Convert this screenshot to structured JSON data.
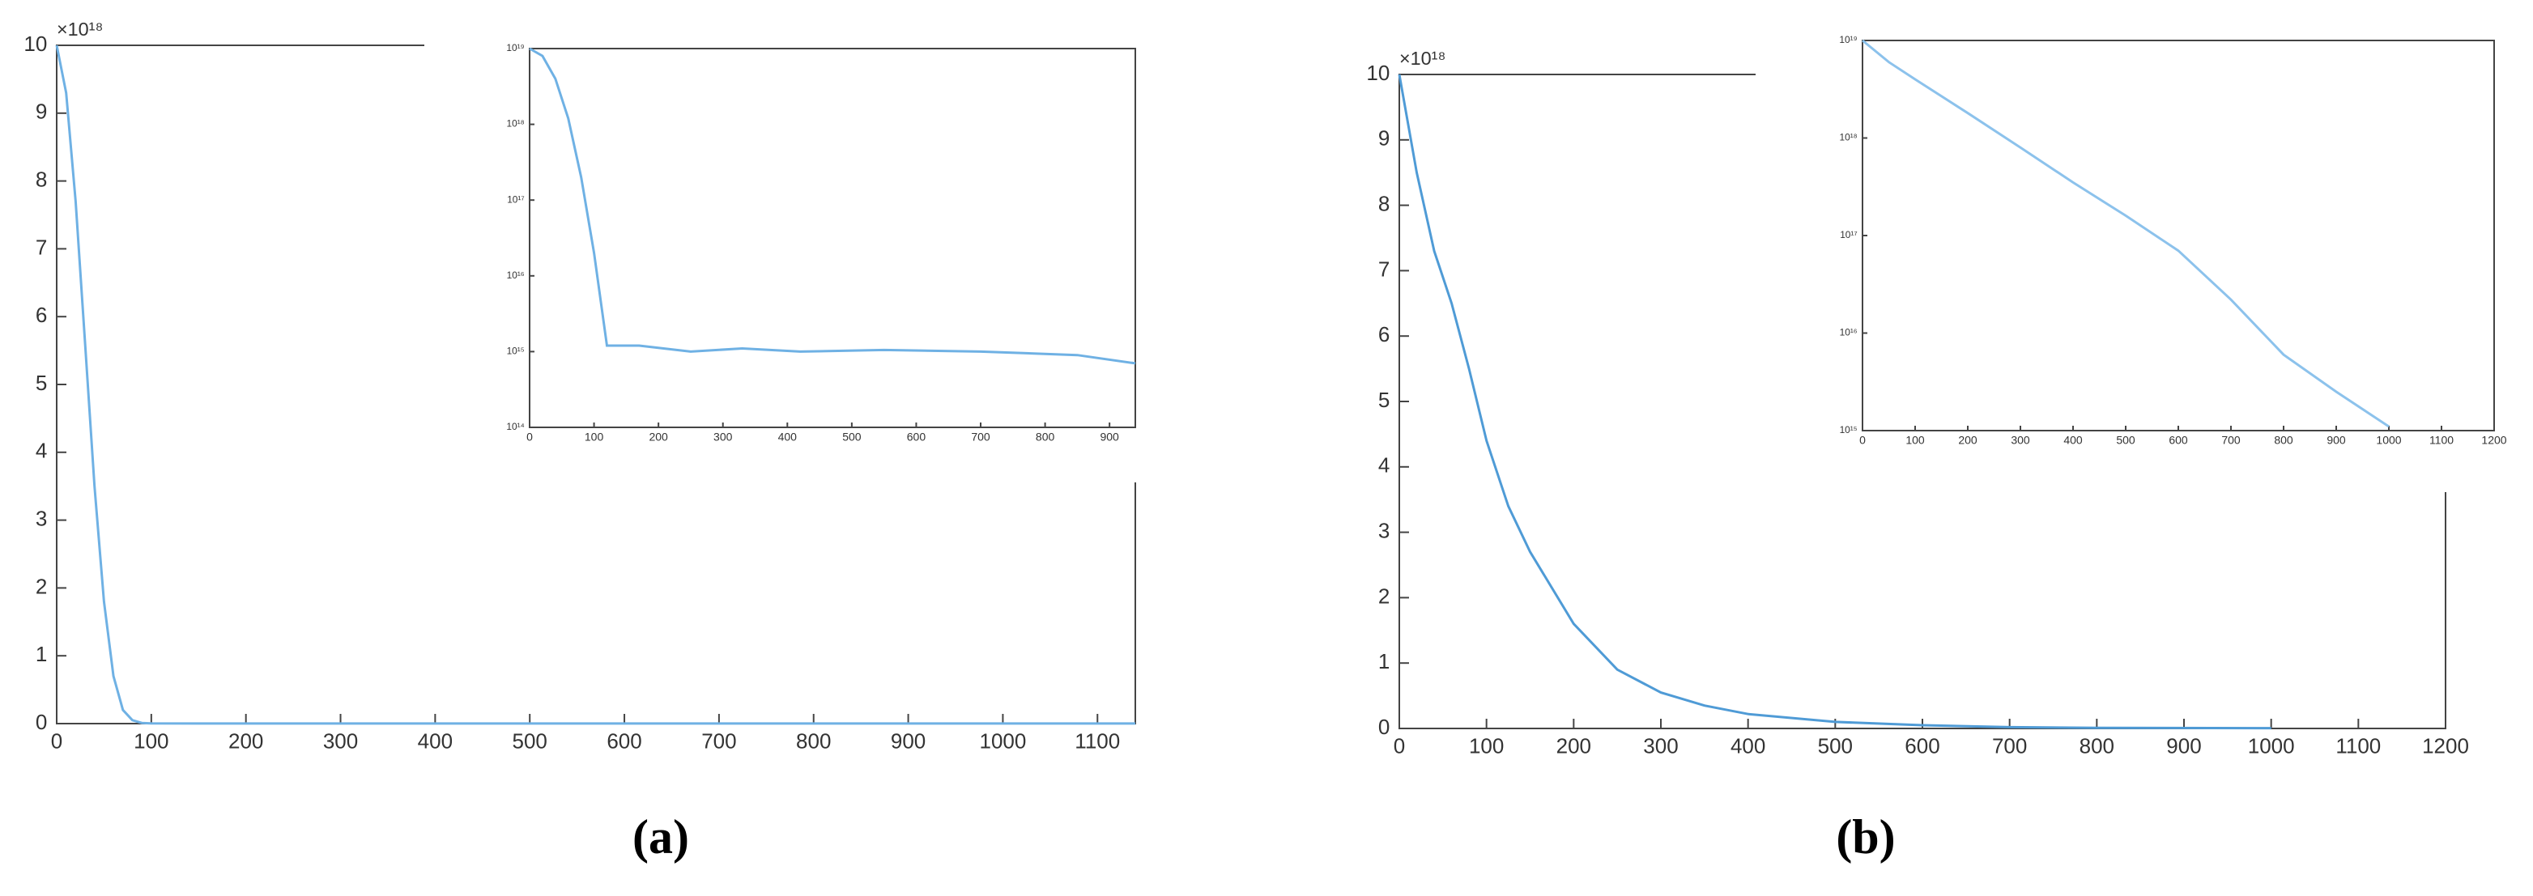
{
  "chart_data": [
    {
      "type": "line",
      "caption": "(a)",
      "y_multiplier": "×10¹⁸",
      "xlim": [
        0,
        1140
      ],
      "xticks": [
        0,
        100,
        200,
        300,
        400,
        500,
        600,
        700,
        800,
        900,
        1000,
        1100
      ],
      "ylim": [
        0,
        10
      ],
      "yticks": [
        0,
        1,
        2,
        3,
        4,
        5,
        6,
        7,
        8,
        9,
        10
      ],
      "series": [
        {
          "color": "#6fb1e4",
          "x": [
            0,
            10,
            20,
            30,
            40,
            50,
            60,
            70,
            80,
            90,
            100,
            150,
            300,
            500,
            700,
            900,
            1140
          ],
          "values": [
            10,
            9.3,
            7.7,
            5.6,
            3.5,
            1.8,
            0.7,
            0.2,
            0.05,
            0.01,
            0.002,
            0.001,
            0.001,
            0.001,
            0.001,
            0.001,
            0.001
          ]
        }
      ]
    },
    {
      "type": "line",
      "yscale": "log",
      "xlim": [
        0,
        940
      ],
      "xticks": [
        0,
        100,
        200,
        300,
        400,
        500,
        600,
        700,
        800,
        900
      ],
      "ylim": [
        100000000000000.0,
        1e+19
      ],
      "yticks": [
        {
          "value": 100000000000000.0,
          "label": "10¹⁴"
        },
        {
          "value": 1000000000000000.0,
          "label": "10¹⁵"
        },
        {
          "value": 1e+16,
          "label": "10¹⁶"
        },
        {
          "value": 1e+17,
          "label": "10¹⁷"
        },
        {
          "value": 1e+18,
          "label": "10¹⁸"
        },
        {
          "value": 1e+19,
          "label": "10¹⁹"
        }
      ],
      "series": [
        {
          "color": "#6fb1e4",
          "x": [
            0,
            20,
            40,
            60,
            80,
            100,
            120,
            170,
            250,
            330,
            420,
            550,
            700,
            850,
            940
          ],
          "values": [
            1e+19,
            8e+18,
            4e+18,
            1.2e+18,
            2e+17,
            2e+16,
            1200000000000000.0,
            1200000000000000.0,
            1000000000000000.0,
            1100000000000000.0,
            1000000000000000.0,
            1050000000000000.0,
            1000000000000000.0,
            900000000000000.0,
            700000000000000.0
          ]
        }
      ]
    },
    {
      "type": "line",
      "caption": "(b)",
      "y_multiplier": "×10¹⁸",
      "xlim": [
        0,
        1200
      ],
      "xticks": [
        0,
        100,
        200,
        300,
        400,
        500,
        600,
        700,
        800,
        900,
        1000,
        1100,
        1200
      ],
      "ylim": [
        0,
        10
      ],
      "yticks": [
        0,
        1,
        2,
        3,
        4,
        5,
        6,
        7,
        8,
        9,
        10
      ],
      "series": [
        {
          "color": "#4f9bd6",
          "x": [
            0,
            20,
            40,
            60,
            80,
            100,
            125,
            150,
            200,
            250,
            300,
            350,
            400,
            500,
            600,
            700,
            800,
            1000
          ],
          "values": [
            10,
            8.5,
            7.3,
            6.5,
            5.5,
            4.4,
            3.4,
            2.7,
            1.6,
            0.9,
            0.55,
            0.35,
            0.22,
            0.1,
            0.05,
            0.02,
            0.01,
            0.005
          ]
        }
      ]
    },
    {
      "type": "line",
      "yscale": "log",
      "xlim": [
        0,
        1200
      ],
      "xticks": [
        0,
        100,
        200,
        300,
        400,
        500,
        600,
        700,
        800,
        900,
        1000,
        1100,
        1200
      ],
      "ylim": [
        1000000000000000.0,
        1e+19
      ],
      "yticks": [
        {
          "value": 1000000000000000.0,
          "label": "10¹⁵"
        },
        {
          "value": 1e+16,
          "label": "10¹⁶"
        },
        {
          "value": 1e+17,
          "label": "10¹⁷"
        },
        {
          "value": 1e+18,
          "label": "10¹⁸"
        },
        {
          "value": 1e+19,
          "label": "10¹⁹"
        }
      ],
      "series": [
        {
          "color": "#8cc2ec",
          "x": [
            0,
            50,
            100,
            200,
            300,
            400,
            500,
            600,
            700,
            800,
            900,
            1000
          ],
          "values": [
            1e+19,
            6e+18,
            4e+18,
            1.8e+18,
            8e+17,
            3.5e+17,
            1.6e+17,
            7e+16,
            2.2e+16,
            6000000000000000.0,
            2500000000000000.0,
            1100000000000000.0
          ]
        }
      ]
    }
  ]
}
